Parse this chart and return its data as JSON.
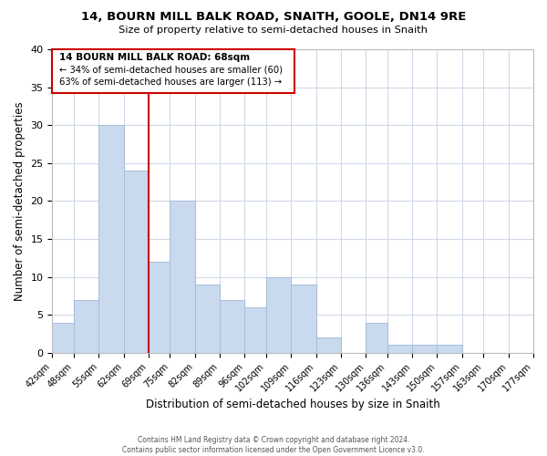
{
  "title": "14, BOURN MILL BALK ROAD, SNAITH, GOOLE, DN14 9RE",
  "subtitle": "Size of property relative to semi-detached houses in Snaith",
  "xlabel": "Distribution of semi-detached houses by size in Snaith",
  "ylabel": "Number of semi-detached properties",
  "bar_color": "#c9d9ee",
  "bar_edge_color": "#a8bdd8",
  "reference_line_value": 69,
  "reference_line_color": "#cc0000",
  "annotation_title": "14 BOURN MILL BALK ROAD: 68sqm",
  "annotation_smaller_pct": "34%",
  "annotation_smaller_count": 60,
  "annotation_larger_pct": "63%",
  "annotation_larger_count": 113,
  "annotation_box_color": "#ffffff",
  "annotation_box_edge": "#cc0000",
  "bins": [
    42,
    48,
    55,
    62,
    69,
    75,
    82,
    89,
    96,
    102,
    109,
    116,
    123,
    130,
    136,
    143,
    150,
    157,
    163,
    170,
    177
  ],
  "bin_labels": [
    "42sqm",
    "48sqm",
    "55sqm",
    "62sqm",
    "69sqm",
    "75sqm",
    "82sqm",
    "89sqm",
    "96sqm",
    "102sqm",
    "109sqm",
    "116sqm",
    "123sqm",
    "130sqm",
    "136sqm",
    "143sqm",
    "150sqm",
    "157sqm",
    "163sqm",
    "170sqm",
    "177sqm"
  ],
  "counts": [
    4,
    7,
    30,
    24,
    12,
    20,
    9,
    7,
    6,
    10,
    9,
    2,
    0,
    4,
    1,
    1,
    1
  ],
  "ylim": [
    0,
    40
  ],
  "yticks": [
    0,
    5,
    10,
    15,
    20,
    25,
    30,
    35,
    40
  ],
  "footer_line1": "Contains HM Land Registry data © Crown copyright and database right 2024.",
  "footer_line2": "Contains public sector information licensed under the Open Government Licence v3.0.",
  "background_color": "#ffffff",
  "grid_color": "#d0d8e8"
}
